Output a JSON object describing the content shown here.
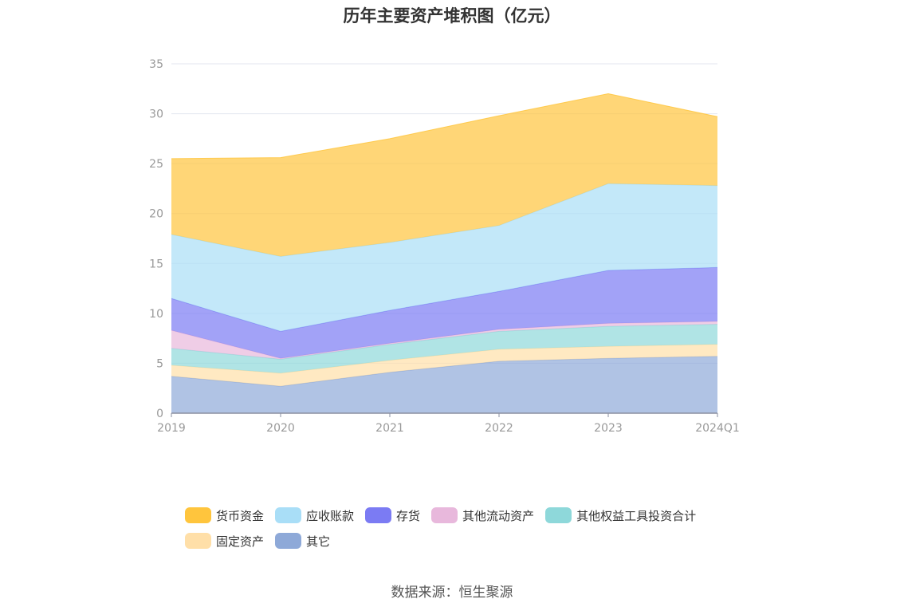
{
  "chart_data": {
    "type": "area",
    "stacked": true,
    "title": "历年主要资产堆积图（亿元）",
    "categories": [
      "2019",
      "2020",
      "2021",
      "2022",
      "2023",
      "2024Q1"
    ],
    "ylim": [
      0,
      35
    ],
    "yticks": [
      0,
      5,
      10,
      15,
      20,
      25,
      30,
      35
    ],
    "grid": true,
    "legend_position": "bottom",
    "series": [
      {
        "name": "其它",
        "color": "#8EA9D8",
        "values": [
          3.7,
          2.7,
          4.1,
          5.2,
          5.5,
          5.7
        ]
      },
      {
        "name": "固定资产",
        "color": "#FFDFA8",
        "values": [
          1.1,
          1.3,
          1.2,
          1.2,
          1.2,
          1.2
        ]
      },
      {
        "name": "其他权益工具投资合计",
        "color": "#8ED8DA",
        "values": [
          1.7,
          1.4,
          1.6,
          1.8,
          2.0,
          2.0
        ]
      },
      {
        "name": "其他流动资产",
        "color": "#E8B8DC",
        "values": [
          1.8,
          0.1,
          0.1,
          0.2,
          0.3,
          0.3
        ]
      },
      {
        "name": "存货",
        "color": "#7B7BF3",
        "values": [
          3.2,
          2.7,
          3.3,
          3.8,
          5.3,
          5.4
        ]
      },
      {
        "name": "应收账款",
        "color": "#A9DEF7",
        "values": [
          6.4,
          7.5,
          6.8,
          6.6,
          8.7,
          8.2
        ]
      },
      {
        "name": "货币资金",
        "color": "#FFC53D",
        "values": [
          7.6,
          9.9,
          10.4,
          11.0,
          9.0,
          6.9
        ]
      }
    ]
  },
  "legend": {
    "row1": [
      {
        "label": "货币资金",
        "color": "#FFC53D"
      },
      {
        "label": "应收账款",
        "color": "#A9DEF7"
      },
      {
        "label": "存货",
        "color": "#7B7BF3"
      },
      {
        "label": "其他流动资产",
        "color": "#E8B8DC"
      },
      {
        "label": "其他权益工具投资合计",
        "color": "#8ED8DA"
      }
    ],
    "row2": [
      {
        "label": "固定资产",
        "color": "#FFDFA8"
      },
      {
        "label": "其它",
        "color": "#8EA9D8"
      }
    ]
  },
  "source": "数据来源：恒生聚源"
}
